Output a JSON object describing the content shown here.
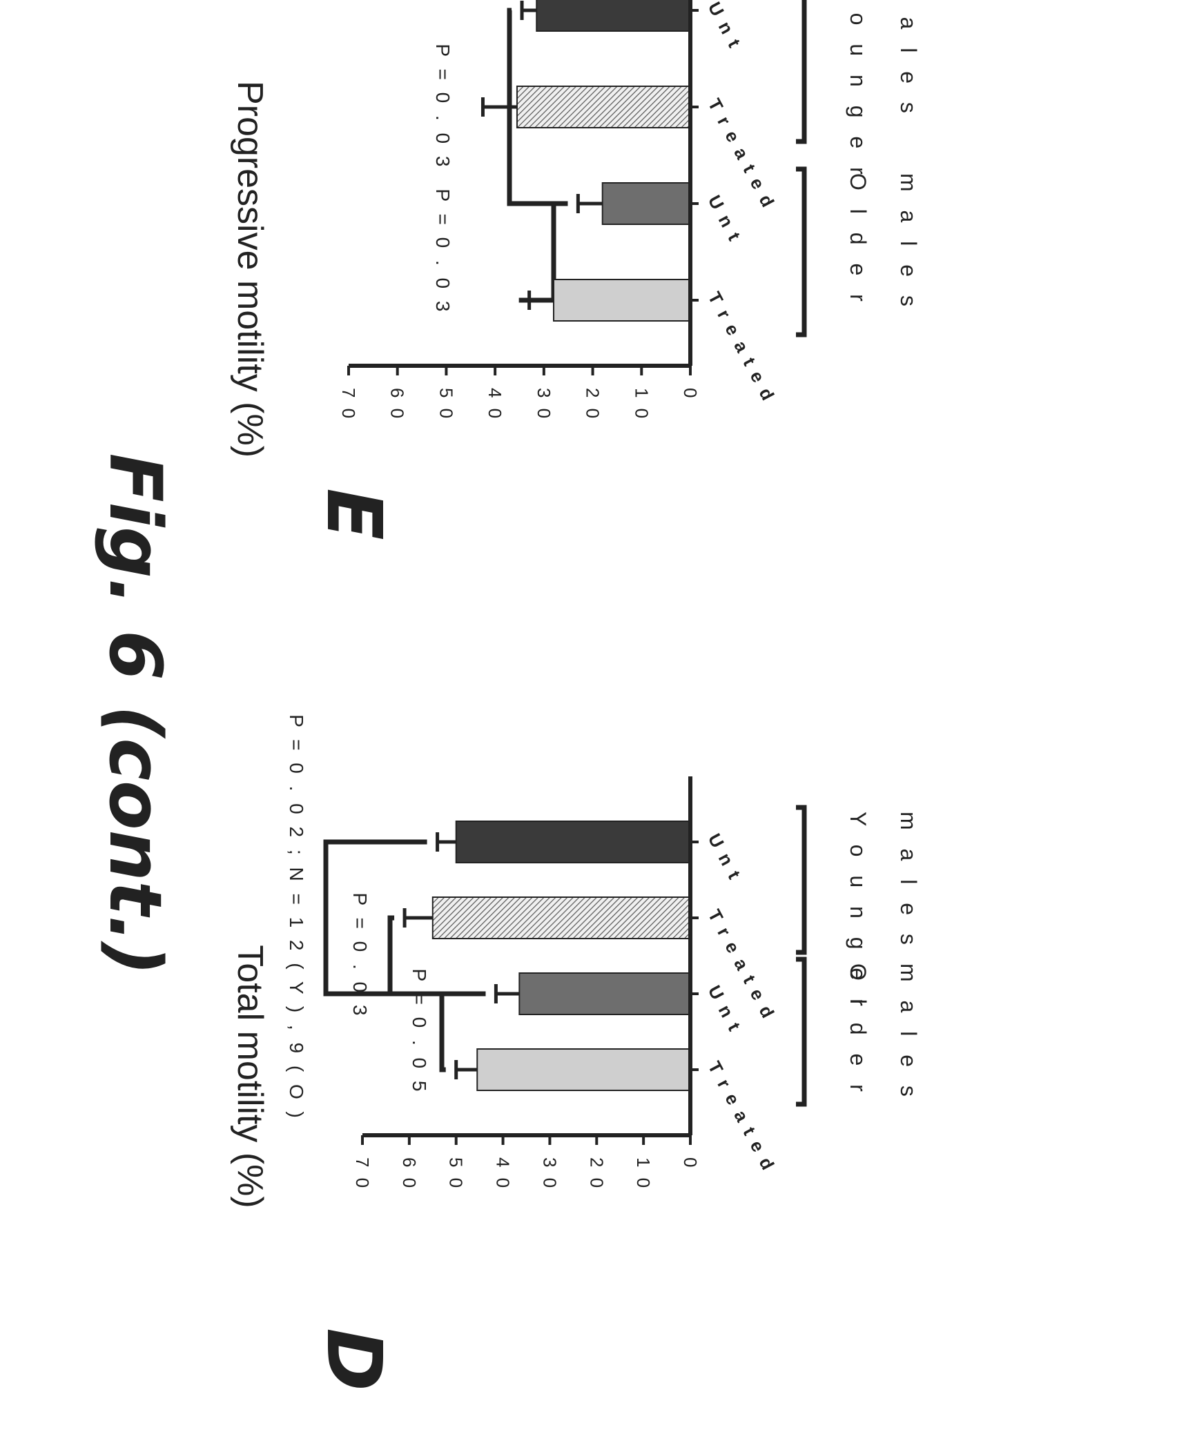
{
  "figure": {
    "title": "Fig. 6 (cont.)"
  },
  "chart_data": [
    {
      "type": "bar",
      "panel": "D",
      "ylabel": "Total motility (%)",
      "ylim": [
        0,
        70
      ],
      "yticks": [
        "0",
        "1 0",
        "2 0",
        "3 0",
        "4 0",
        "5 0",
        "6 0",
        "7 0"
      ],
      "categories": [
        "U n t",
        "T r e a t e d",
        "U n t",
        "T r e a t e d"
      ],
      "groups": [
        {
          "line1": "Y o u n g e r",
          "line2": "m a l e s"
        },
        {
          "line1": "O l d e r",
          "line2": "m a l e s"
        }
      ],
      "values": [
        50,
        55,
        36.5,
        45.5
      ],
      "errors": [
        4,
        6,
        5,
        4.5
      ],
      "fills": [
        "#3a3a3a",
        "#8c8c8c",
        "#6e6e6e",
        "#cfcfcf"
      ],
      "pvalues": [
        {
          "label": "P = 0 . 0 2 ; N = 1 2 ( Y ) , 9 ( O )",
          "from": 0,
          "to": 2
        },
        {
          "label": "P = 0 . 0 3",
          "from": 1,
          "to": 2
        },
        {
          "label": "P = 0 . 0 5",
          "from": 2,
          "to": 3
        }
      ]
    },
    {
      "type": "bar",
      "panel": "E",
      "ylabel": "Progressive motility (%)",
      "ylim": [
        0,
        70
      ],
      "yticks": [
        "0",
        "1 0",
        "2 0",
        "3 0",
        "4 0",
        "5 0",
        "6 0",
        "7 0"
      ],
      "categories": [
        "U n t",
        "T r e a t e d",
        "U n t",
        "T r e a t e d"
      ],
      "groups": [
        {
          "line1": "Y o u n g e r",
          "line2": "m a l e s"
        },
        {
          "line1": "O l d e r",
          "line2": "m a l e s"
        }
      ],
      "values": [
        31.5,
        35.5,
        18,
        28
      ],
      "errors": [
        3,
        7,
        5,
        5
      ],
      "fills": [
        "#3a3a3a",
        "#8c8c8c",
        "#6e6e6e",
        "#cfcfcf"
      ],
      "pvalues": [
        {
          "label": "P = 0 . 0 3",
          "from": 0,
          "to": 2
        },
        {
          "label": "P = 0 . 0 3",
          "from": 2,
          "to": 3
        }
      ]
    }
  ]
}
